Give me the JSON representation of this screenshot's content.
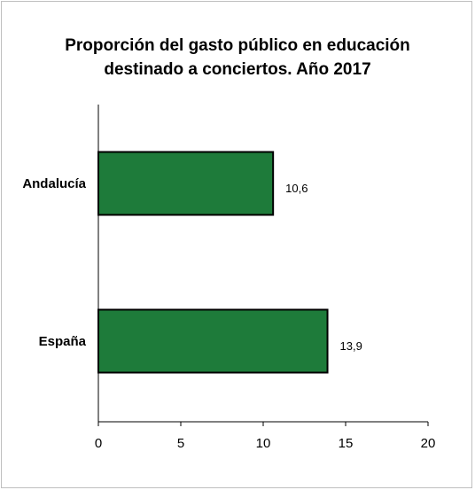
{
  "chart_data": {
    "type": "bar",
    "orientation": "horizontal",
    "title": "Proporción del gasto público en educación destinado a conciertos. Año 2017",
    "title_lines": [
      "Proporción del gasto público en educación",
      "destinado a conciertos. Año 2017"
    ],
    "categories": [
      "Andalucía",
      "España"
    ],
    "values": [
      10.6,
      13.9
    ],
    "value_labels": [
      "10,6",
      "13,9"
    ],
    "xlim": [
      0,
      20
    ],
    "xticks": [
      0,
      5,
      10,
      15,
      20
    ],
    "xtick_labels": [
      "0",
      "5",
      "10",
      "15",
      "20"
    ],
    "grid": false,
    "legend": "none",
    "bar_color": "#1e7b3a",
    "bar_edge_color": "#000000"
  }
}
